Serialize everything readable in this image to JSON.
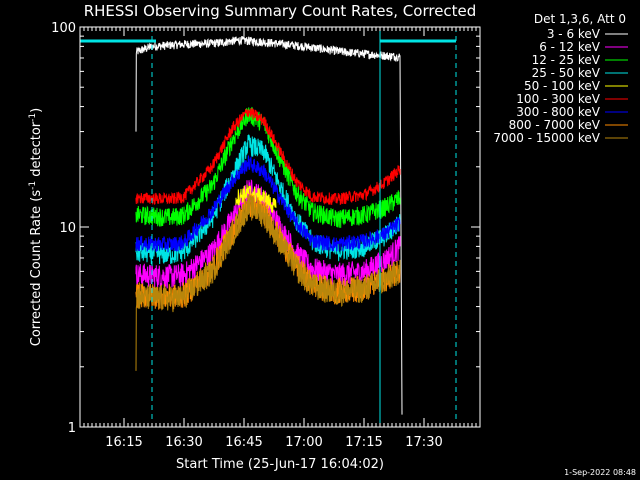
{
  "chart_data": {
    "type": "line",
    "title": "RHESSI Observing Summary Count Rates, Corrected",
    "xlabel": "Start Time (25-Jun-17 16:04:02)",
    "ylabel_main": "Corrected Count Rate (s",
    "ylabel_sup1": "-1",
    "ylabel_mid": " detector",
    "ylabel_sup2": "-1",
    "ylabel_end": ")",
    "ylabel": "Corrected Count Rate (s-1 detector-1)",
    "yscale": "log",
    "xlim": [
      "16:04",
      "17:44"
    ],
    "ylim": [
      1,
      100
    ],
    "x_ticks": [
      "16:15",
      "16:30",
      "16:45",
      "17:00",
      "17:15",
      "17:30"
    ],
    "y_ticks": [
      "1",
      "10",
      "100"
    ],
    "legend_header": "Det 1,3,6, Att 0",
    "legend_position": "top-right",
    "timestamp": "1-Sep-2022 08:48",
    "vertical_lines": [
      {
        "time": "16:04",
        "style": "solid",
        "color": "#00e5e5"
      },
      {
        "time": "16:22",
        "style": "dashed",
        "color": "#00e5e5"
      },
      {
        "time": "17:19",
        "style": "solid",
        "color": "#00e5e5"
      },
      {
        "time": "17:38",
        "style": "dashed",
        "color": "#00e5e5"
      }
    ],
    "bars": [
      {
        "start": "16:04",
        "end": "16:23",
        "color": "#00e5e5"
      },
      {
        "start": "17:19",
        "end": "17:38",
        "color": "#00e5e5"
      }
    ],
    "series": [
      {
        "name": "3 - 6 keV",
        "color": "#ffffff",
        "jitter": 0.05,
        "points": [
          [
            "16:18",
            30
          ],
          [
            "16:18",
            75
          ],
          [
            "16:22",
            80
          ],
          [
            "16:30",
            82
          ],
          [
            "16:38",
            83
          ],
          [
            "16:44",
            86
          ],
          [
            "16:50",
            84
          ],
          [
            "17:00",
            80
          ],
          [
            "17:10",
            75
          ],
          [
            "17:20",
            72
          ],
          [
            "17:24",
            71
          ],
          [
            "17:24.5",
            1.2
          ]
        ]
      },
      {
        "name": "6 - 12 keV",
        "color": "#ff00ff",
        "jitter": 0.14,
        "points": [
          [
            "16:18",
            5.8
          ],
          [
            "16:27",
            5.7
          ],
          [
            "16:30",
            5.8
          ],
          [
            "16:37",
            7.5
          ],
          [
            "16:42",
            11
          ],
          [
            "16:46",
            15.5
          ],
          [
            "16:50",
            14
          ],
          [
            "16:54",
            10
          ],
          [
            "16:58",
            7.5
          ],
          [
            "17:02",
            6.2
          ],
          [
            "17:08",
            5.8
          ],
          [
            "17:15",
            6
          ],
          [
            "17:20",
            6.8
          ],
          [
            "17:24",
            8
          ]
        ]
      },
      {
        "name": "12 - 25 keV",
        "color": "#00ff00",
        "jitter": 0.11,
        "points": [
          [
            "16:18",
            11.5
          ],
          [
            "16:27",
            11.2
          ],
          [
            "16:30",
            11.5
          ],
          [
            "16:37",
            16
          ],
          [
            "16:42",
            27
          ],
          [
            "16:46",
            37
          ],
          [
            "16:50",
            33
          ],
          [
            "16:54",
            22
          ],
          [
            "16:58",
            15
          ],
          [
            "17:02",
            12
          ],
          [
            "17:08",
            11
          ],
          [
            "17:15",
            11.5
          ],
          [
            "17:20",
            12.5
          ],
          [
            "17:24",
            14
          ]
        ]
      },
      {
        "name": "25 - 50 keV",
        "color": "#00e5e5",
        "jitter": 0.12,
        "points": [
          [
            "16:18",
            7.5
          ],
          [
            "16:27",
            7.3
          ],
          [
            "16:30",
            7.6
          ],
          [
            "16:37",
            11
          ],
          [
            "16:42",
            18
          ],
          [
            "16:46",
            26
          ],
          [
            "16:50",
            24
          ],
          [
            "16:54",
            16
          ],
          [
            "16:58",
            11
          ],
          [
            "17:02",
            8.5
          ],
          [
            "17:08",
            7.6
          ],
          [
            "17:15",
            8
          ],
          [
            "17:20",
            9
          ],
          [
            "17:24",
            10.5
          ]
        ]
      },
      {
        "name": "50 - 100 keV",
        "color": "#ffff00",
        "jitter": 0.1,
        "points": [
          [
            "16:43",
            14
          ],
          [
            "16:46",
            15
          ],
          [
            "16:50",
            14
          ],
          [
            "16:53",
            12.5
          ]
        ]
      },
      {
        "name": "100 - 300 keV",
        "color": "#ff0000",
        "jitter": 0.07,
        "points": [
          [
            "16:18",
            14
          ],
          [
            "16:27",
            13.8
          ],
          [
            "16:30",
            14.2
          ],
          [
            "16:37",
            20
          ],
          [
            "16:42",
            31
          ],
          [
            "16:46",
            38
          ],
          [
            "16:50",
            34
          ],
          [
            "16:54",
            24
          ],
          [
            "16:58",
            17
          ],
          [
            "17:02",
            14.2
          ],
          [
            "17:08",
            13.8
          ],
          [
            "17:15",
            14.5
          ],
          [
            "17:20",
            16.5
          ],
          [
            "17:24",
            19.5
          ]
        ]
      },
      {
        "name": "300 - 800 keV",
        "color": "#0000ff",
        "jitter": 0.09,
        "points": [
          [
            "16:18",
            8.3
          ],
          [
            "16:27",
            8.2
          ],
          [
            "16:30",
            8.4
          ],
          [
            "16:37",
            12
          ],
          [
            "16:42",
            17
          ],
          [
            "16:46",
            21
          ],
          [
            "16:50",
            19
          ],
          [
            "16:54",
            14
          ],
          [
            "16:58",
            10.5
          ],
          [
            "17:02",
            8.6
          ],
          [
            "17:08",
            8.2
          ],
          [
            "17:15",
            8.5
          ],
          [
            "17:20",
            9.2
          ],
          [
            "17:24",
            10.5
          ]
        ]
      },
      {
        "name": "800 - 7000 keV",
        "color": "#ff8c00",
        "jitter": 0.15,
        "points": [
          [
            "16:18",
            4.6
          ],
          [
            "16:27",
            4.5
          ],
          [
            "16:30",
            4.6
          ],
          [
            "16:37",
            6.2
          ],
          [
            "16:42",
            9.5
          ],
          [
            "16:46",
            13.2
          ],
          [
            "16:50",
            12
          ],
          [
            "16:54",
            8.8
          ],
          [
            "16:58",
            6.5
          ],
          [
            "17:02",
            5.2
          ],
          [
            "17:08",
            4.8
          ],
          [
            "17:15",
            5
          ],
          [
            "17:20",
            5.5
          ],
          [
            "17:24",
            6.2
          ]
        ]
      },
      {
        "name": "7000 - 15000 keV",
        "color": "#b8860b",
        "jitter": 0.15,
        "points": [
          [
            "16:18",
            2
          ],
          [
            "16:18",
            4.5
          ],
          [
            "16:27",
            4.4
          ],
          [
            "16:30",
            4.5
          ],
          [
            "16:37",
            6
          ],
          [
            "16:42",
            9.2
          ],
          [
            "16:46",
            12.8
          ],
          [
            "16:50",
            11.6
          ],
          [
            "16:54",
            8.5
          ],
          [
            "16:58",
            6.3
          ],
          [
            "17:02",
            5.1
          ],
          [
            "17:08",
            4.7
          ],
          [
            "17:15",
            4.9
          ],
          [
            "17:20",
            5.4
          ],
          [
            "17:24",
            6.1
          ]
        ]
      }
    ]
  }
}
